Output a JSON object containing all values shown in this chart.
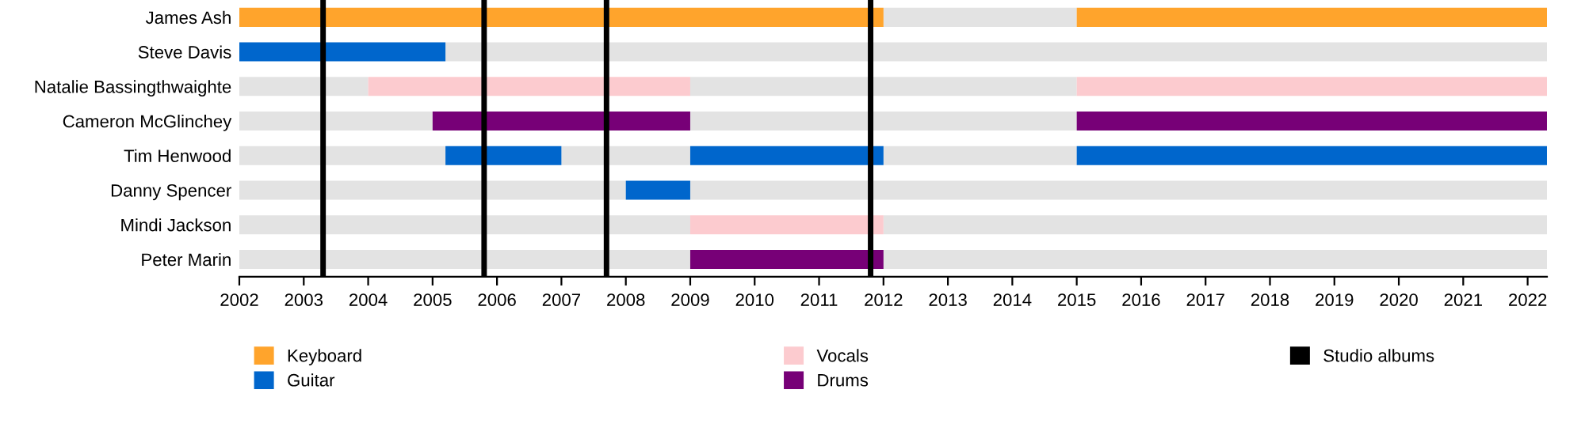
{
  "chart_data": {
    "type": "bar",
    "orientation": "horizontal",
    "categories": [
      "James Ash",
      "Steve Davis",
      "Natalie Bassingthwaighte",
      "Cameron McGlinchey",
      "Tim Henwood",
      "Danny Spencer",
      "Mindi Jackson",
      "Peter Marin"
    ],
    "series": [
      {
        "color": "#e3e3e3",
        "base": [
          2012,
          2005.2,
          2002,
          2002,
          2002,
          2002,
          2002,
          2002
        ],
        "values": [
          3,
          17.1,
          2,
          3,
          3.2,
          6,
          7,
          7
        ]
      },
      {
        "color": "#e3e3e3",
        "base": [
          null,
          null,
          2009,
          2009,
          2007,
          2009,
          2012,
          2012
        ],
        "values": [
          null,
          null,
          6,
          6,
          2,
          13.3,
          10.3,
          10.3
        ]
      },
      {
        "color": "#e3e3e3",
        "base": [
          null,
          null,
          null,
          null,
          2012,
          null,
          null,
          null
        ],
        "values": [
          null,
          null,
          null,
          null,
          3,
          null,
          null,
          null
        ]
      },
      {
        "name": "Keyboard",
        "color": "#ffa42c",
        "base": [
          2002,
          null,
          null,
          null,
          null,
          null,
          null,
          null
        ],
        "values": [
          10,
          null,
          null,
          null,
          null,
          null,
          null,
          null
        ]
      },
      {
        "name": "Guitar",
        "color": "#0066cc",
        "base": [
          null,
          2002,
          null,
          null,
          2005.2,
          2008,
          null,
          null
        ],
        "values": [
          null,
          3.2,
          null,
          null,
          1.8,
          1,
          null,
          null
        ]
      },
      {
        "name": "Vocals",
        "color": "#fccbcf",
        "base": [
          null,
          null,
          2004,
          null,
          null,
          null,
          2009,
          null
        ],
        "values": [
          null,
          null,
          5,
          null,
          null,
          null,
          3,
          null
        ]
      },
      {
        "name": "Drums",
        "color": "#770077",
        "base": [
          null,
          null,
          null,
          2005,
          null,
          null,
          null,
          2009
        ],
        "values": [
          null,
          null,
          null,
          4,
          null,
          null,
          null,
          3
        ]
      },
      {
        "color": "#ffa42c",
        "base": [
          2015,
          null,
          null,
          null,
          null,
          null,
          null,
          null
        ],
        "values": [
          7.3,
          null,
          null,
          null,
          null,
          null,
          null,
          null
        ]
      },
      {
        "color": "#0066cc",
        "base": [
          null,
          null,
          null,
          null,
          2009,
          null,
          null,
          null
        ],
        "values": [
          null,
          null,
          null,
          null,
          3,
          null,
          null,
          null
        ]
      },
      {
        "color": "#0066cc",
        "base": [
          null,
          null,
          null,
          null,
          2015,
          null,
          null,
          null
        ],
        "values": [
          null,
          null,
          null,
          null,
          7.3,
          null,
          null,
          null
        ]
      },
      {
        "color": "#fccbcf",
        "base": [
          null,
          null,
          2015,
          null,
          null,
          null,
          null,
          null
        ],
        "values": [
          null,
          null,
          7.3,
          null,
          null,
          null,
          null,
          null
        ]
      },
      {
        "color": "#770077",
        "base": [
          null,
          null,
          null,
          2015,
          null,
          null,
          null,
          null
        ],
        "values": [
          null,
          null,
          null,
          7.3,
          null,
          null,
          null,
          null
        ]
      }
    ],
    "ref_lines": [
      {
        "axis": "x",
        "value": 2003.3,
        "label": "Studio albums",
        "color": "#000000"
      },
      {
        "axis": "x",
        "value": 2005.8,
        "color": "#000000"
      },
      {
        "axis": "x",
        "value": 2007.7,
        "color": "#000000"
      },
      {
        "axis": "x",
        "value": 2011.8,
        "color": "#000000"
      }
    ],
    "xlim": [
      2002,
      2022.3
    ],
    "xticks": [
      2002,
      2003,
      2004,
      2005,
      2006,
      2007,
      2008,
      2009,
      2010,
      2011,
      2012,
      2013,
      2014,
      2015,
      2016,
      2017,
      2018,
      2019,
      2020,
      2021,
      2022
    ],
    "legend": "bottom",
    "grid": false
  }
}
